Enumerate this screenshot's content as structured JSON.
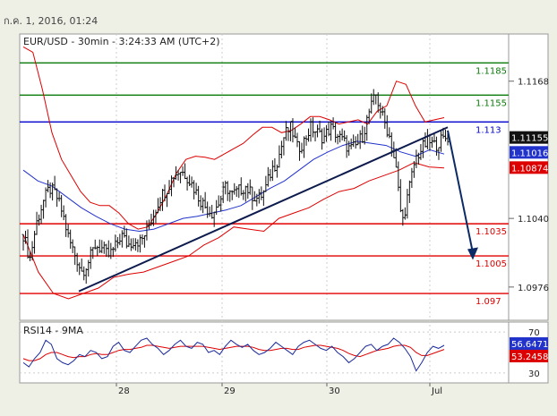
{
  "header": {
    "timestamp": "ก.ค. 1, 2016, 01:24"
  },
  "chart_data": {
    "type": "candlestick",
    "title": "EUR/USD - 30min - 3:24:33 AM (UTC+2)",
    "instrument": "EUR/USD",
    "timeframe": "30min",
    "time_label": "3:24:33 AM (UTC+2)",
    "price_axis": {
      "ylim": [
        1.0945,
        1.1212
      ],
      "ticks": [
        1.1168,
        1.104,
        1.0976
      ]
    },
    "x_axis": {
      "ticks": [
        "28",
        "29",
        "30",
        "Jul"
      ]
    },
    "horizontal_levels": [
      {
        "value": 1.1185,
        "label": "1.1185",
        "color": "#0a7a0a"
      },
      {
        "value": 1.1155,
        "label": "1.1155",
        "color": "#0a7a0a"
      },
      {
        "value": 1.113,
        "label": "1.113",
        "color": "#0000cc"
      },
      {
        "value": 1.1035,
        "label": "1.1035",
        "color": "#e00000"
      },
      {
        "value": 1.1005,
        "label": "1.1005",
        "color": "#e00000"
      },
      {
        "value": 1.097,
        "label": "1.097",
        "color": "#e00000"
      }
    ],
    "price_badges": [
      {
        "value": 1.11155,
        "label": "1.11155",
        "bg": "#111111"
      },
      {
        "value": 1.11016,
        "label": "1.11016",
        "bg": "#2233cc"
      },
      {
        "value": 1.10874,
        "label": "1.10874",
        "bg": "#dd0000"
      }
    ],
    "close_path": [
      1.1025,
      1.1002,
      1.1035,
      1.1055,
      1.1068,
      1.1062,
      1.1045,
      1.102,
      1.1005,
      1.099,
      1.1,
      1.1015,
      1.1012,
      1.1005,
      1.1012,
      1.1025,
      1.1015,
      1.102,
      1.1018,
      1.103,
      1.1045,
      1.106,
      1.1068,
      1.108,
      1.1085,
      1.108,
      1.107,
      1.1058,
      1.105,
      1.1045,
      1.1055,
      1.107,
      1.1062,
      1.1066,
      1.107,
      1.1062,
      1.1058,
      1.1066,
      1.1085,
      1.1095,
      1.1118,
      1.1125,
      1.1105,
      1.1112,
      1.1125,
      1.112,
      1.1115,
      1.1125,
      1.1118,
      1.1112,
      1.1104,
      1.1108,
      1.1118,
      1.114,
      1.1155,
      1.1135,
      1.1118,
      1.109,
      1.1035,
      1.1065,
      1.1095,
      1.1105,
      1.1112,
      1.1108,
      1.1113,
      1.1116
    ],
    "bollinger_upper": [
      1.12,
      1.1195,
      1.116,
      1.112,
      1.1095,
      1.108,
      1.1065,
      1.1055,
      1.1052,
      1.1052,
      1.1045,
      1.1035,
      1.103,
      1.1032,
      1.1045,
      1.1062,
      1.1082,
      1.1095,
      1.1098,
      1.1097,
      1.1095,
      1.11,
      1.1105,
      1.111,
      1.1118,
      1.1125,
      1.1125,
      1.112,
      1.1122,
      1.1128,
      1.1135,
      1.1135,
      1.1132,
      1.1128,
      1.113,
      1.1132,
      1.1128,
      1.114,
      1.1145,
      1.1168,
      1.1165,
      1.1145,
      1.113,
      1.1132,
      1.1134
    ],
    "bollinger_lower": [
      1.1025,
      1.099,
      1.097,
      1.0965,
      1.097,
      1.0975,
      1.0985,
      1.0988,
      1.099,
      1.0995,
      1.1,
      1.1005,
      1.1015,
      1.1022,
      1.1032,
      1.103,
      1.1028,
      1.104,
      1.1045,
      1.105,
      1.1058,
      1.1065,
      1.1068,
      1.1075,
      1.108,
      1.1085,
      1.1092,
      1.1088,
      1.1087
    ],
    "ma_line": [
      1.1085,
      1.1075,
      1.107,
      1.106,
      1.105,
      1.1042,
      1.1035,
      1.103,
      1.1028,
      1.103,
      1.1035,
      1.104,
      1.1042,
      1.1045,
      1.1048,
      1.1052,
      1.106,
      1.1068,
      1.1075,
      1.1085,
      1.1095,
      1.1102,
      1.1108,
      1.1112,
      1.111,
      1.1108,
      1.1102,
      1.1098,
      1.1104,
      1.11
    ],
    "trendline": {
      "from": [
        "27",
        1.0972
      ],
      "to": [
        "Jul",
        1.1125
      ],
      "label": ""
    },
    "forecast_arrow": {
      "direction": "down",
      "from": 1.1122,
      "to": 1.1003
    },
    "rsi": {
      "label": "RSI14 - 9MA",
      "ticks": [
        70,
        30
      ],
      "ylim": [
        22,
        78
      ],
      "values_badges": [
        {
          "label": "56.6471",
          "bg": "#2233cc"
        },
        {
          "label": "53.2458",
          "bg": "#dd0000"
        }
      ],
      "rsi_series": [
        40,
        36,
        44,
        50,
        62,
        58,
        44,
        40,
        38,
        42,
        48,
        46,
        52,
        50,
        44,
        46,
        56,
        60,
        52,
        50,
        56,
        62,
        64,
        58,
        54,
        48,
        52,
        58,
        62,
        56,
        54,
        60,
        58,
        50,
        52,
        48,
        56,
        62,
        58,
        55,
        58,
        52,
        48,
        50,
        54,
        60,
        56,
        52,
        48,
        56,
        60,
        62,
        58,
        54,
        52,
        56,
        50,
        46,
        40,
        44,
        50,
        56,
        58,
        52,
        56,
        58,
        64,
        60,
        54,
        46,
        32,
        40,
        50,
        56,
        54,
        57
      ],
      "ma_series": [
        44,
        42,
        42,
        44,
        48,
        50,
        50,
        48,
        46,
        45,
        46,
        46,
        48,
        49,
        48,
        48,
        50,
        52,
        53,
        53,
        54,
        55,
        57,
        57,
        56,
        55,
        54,
        55,
        56,
        56,
        56,
        56,
        56,
        55,
        54,
        53,
        54,
        55,
        56,
        56,
        56,
        55,
        53,
        52,
        52,
        53,
        54,
        54,
        53,
        53,
        55,
        56,
        57,
        57,
        56,
        55,
        54,
        52,
        49,
        47,
        46,
        48,
        50,
        52,
        53,
        54,
        56,
        57,
        57,
        55,
        50,
        47,
        47,
        49,
        51,
        53
      ]
    }
  }
}
